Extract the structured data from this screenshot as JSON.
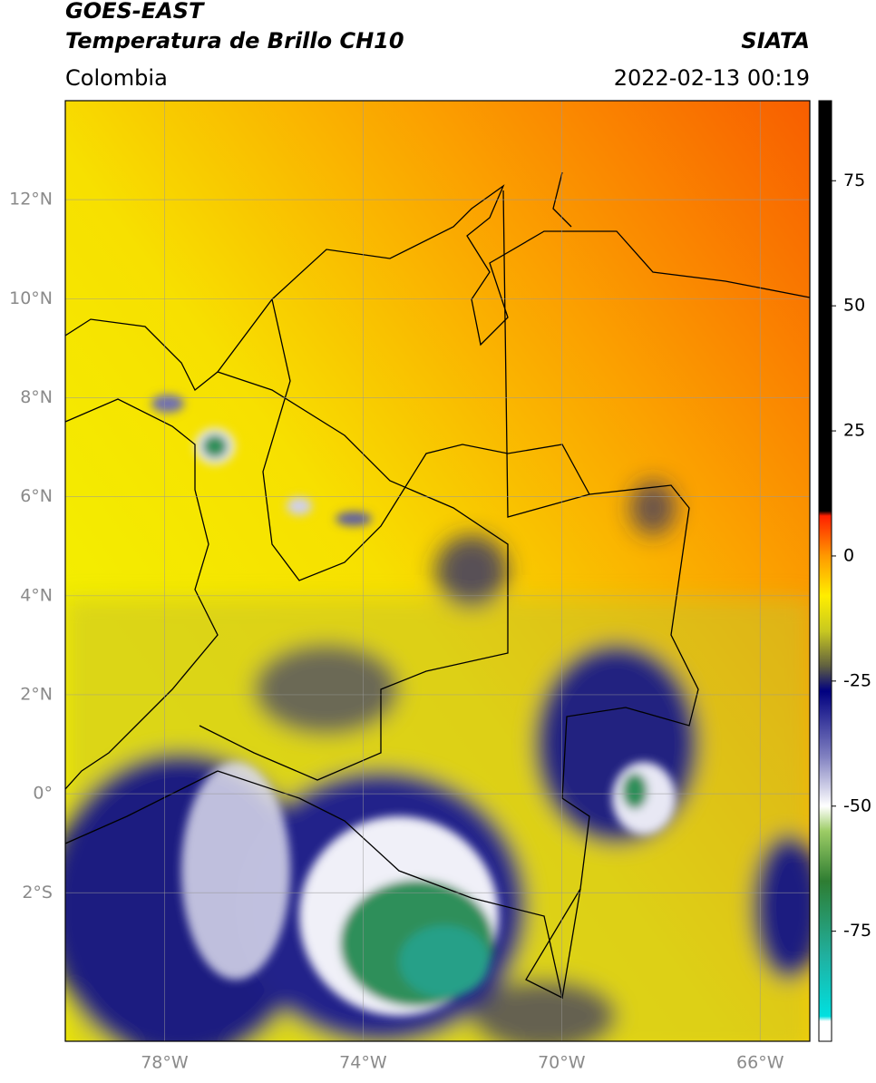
{
  "header": {
    "title": "GOES-EAST",
    "subtitle": "Temperatura de Brillo CH10",
    "source": "SIATA",
    "region": "Colombia",
    "datetime": "2022-02-13 00:19"
  },
  "map": {
    "lon_range": [
      -80,
      -65
    ],
    "lat_range": [
      -5,
      14
    ],
    "xticks": [
      {
        "value": -78,
        "label": "78°W"
      },
      {
        "value": -74,
        "label": "74°W"
      },
      {
        "value": -70,
        "label": "70°W"
      },
      {
        "value": -66,
        "label": "66°W"
      }
    ],
    "yticks": [
      {
        "value": 12,
        "label": "12°N"
      },
      {
        "value": 10,
        "label": "10°N"
      },
      {
        "value": 8,
        "label": "8°N"
      },
      {
        "value": 6,
        "label": "6°N"
      },
      {
        "value": 4,
        "label": "4°N"
      },
      {
        "value": 2,
        "label": "2°N"
      },
      {
        "value": 0,
        "label": "0°"
      },
      {
        "value": -2,
        "label": "2°S"
      }
    ]
  },
  "colorbar": {
    "range": [
      -97,
      91
    ],
    "ticks": [
      75,
      50,
      25,
      0,
      -25,
      -50,
      -75
    ],
    "stops": [
      {
        "value": -97,
        "color": "#ffffff"
      },
      {
        "value": -93,
        "color": "#ffffff"
      },
      {
        "value": -92,
        "color": "#00e0e0"
      },
      {
        "value": -80,
        "color": "#20b0a0"
      },
      {
        "value": -65,
        "color": "#2e7d32"
      },
      {
        "value": -55,
        "color": "#9ccc65"
      },
      {
        "value": -50,
        "color": "#ffffff"
      },
      {
        "value": -40,
        "color": "#8080c0"
      },
      {
        "value": -27,
        "color": "#000080"
      },
      {
        "value": -22,
        "color": "#606040"
      },
      {
        "value": -15,
        "color": "#c8c820"
      },
      {
        "value": -8,
        "color": "#ffee00"
      },
      {
        "value": 0,
        "color": "#ff9900"
      },
      {
        "value": 8,
        "color": "#ff2000"
      },
      {
        "value": 9,
        "color": "#000000"
      },
      {
        "value": 91,
        "color": "#000000"
      }
    ]
  }
}
